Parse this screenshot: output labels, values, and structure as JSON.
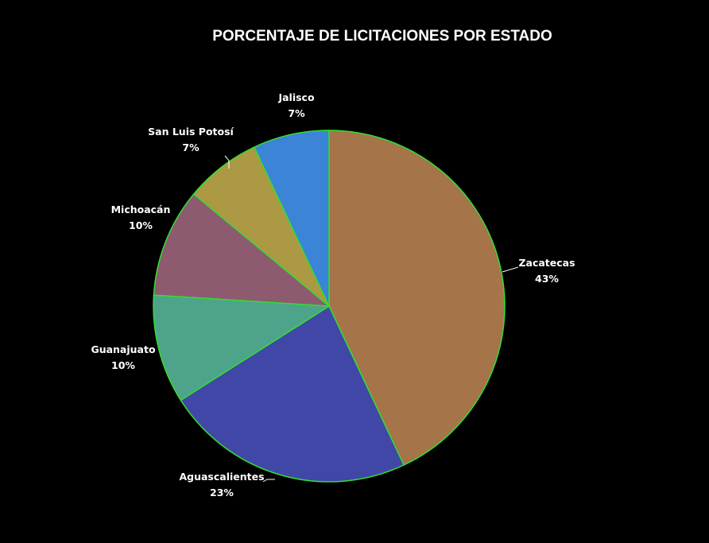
{
  "chart_data": {
    "type": "pie",
    "title": "PORCENTAJE DE LICITACIONES POR ESTADO",
    "categories": [
      "Zacatecas",
      "Aguascalientes",
      "Guanajuato",
      "Michoacán",
      "San Luis Potosí",
      "Jalisco"
    ],
    "values": [
      43,
      23,
      10,
      10,
      7,
      7
    ],
    "value_labels": [
      "43%",
      "23%",
      "10%",
      "10%",
      "7%",
      "7%"
    ],
    "colors": [
      "#a57448",
      "#4147a6",
      "#4ea48a",
      "#8e5a70",
      "#ac9944",
      "#3b84d6"
    ],
    "slice_border_color": "#33dd33",
    "leader_line_color": "#ffffff",
    "background": "#000000",
    "legend": "none",
    "start_angle_deg": 0,
    "direction": "clockwise"
  }
}
